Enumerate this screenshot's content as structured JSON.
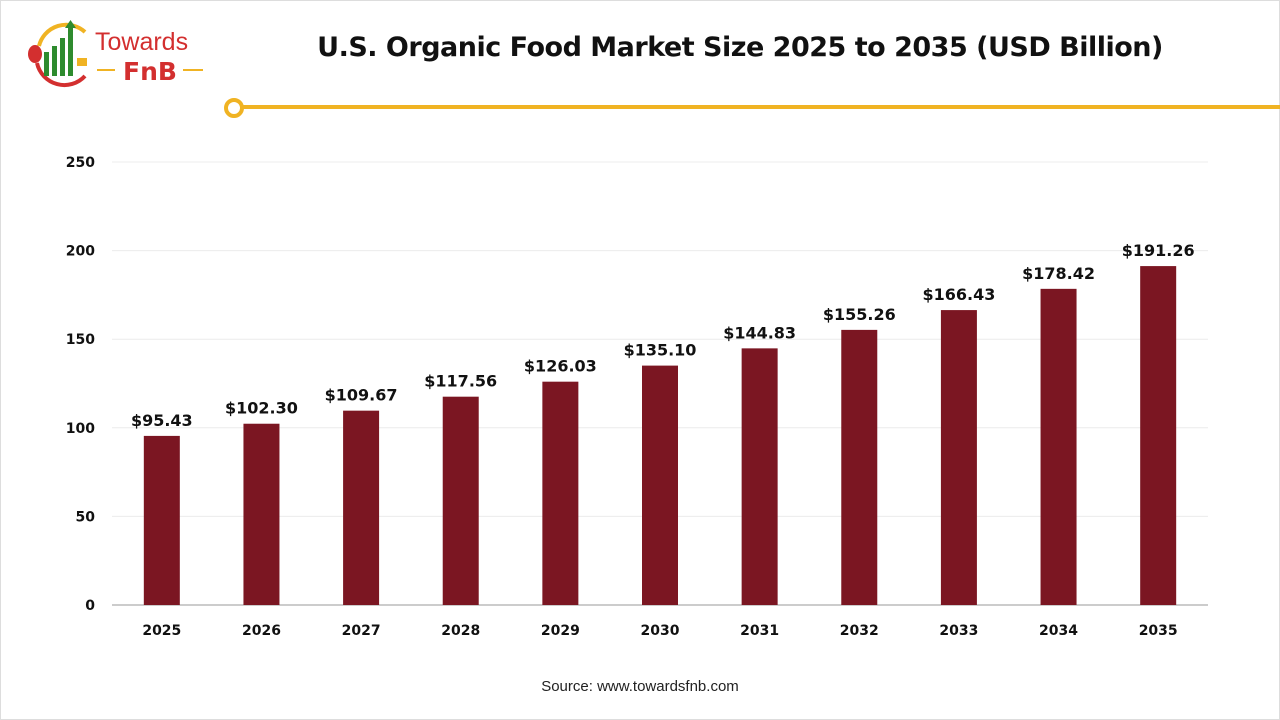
{
  "logo": {
    "text_top": "Towards",
    "text_bottom": "FnB"
  },
  "title": "U.S. Organic Food Market Size 2025 to 2035 (USD Billion)",
  "source": "Source: www.towardsfnb.com",
  "colors": {
    "bar": "#7b1622",
    "accent": "#f0b323",
    "logo_red": "#d32f2f",
    "logo_green": "#2e8b2e"
  },
  "chart_data": {
    "type": "bar",
    "title": "U.S. Organic Food Market Size 2025 to 2035 (USD Billion)",
    "xlabel": "",
    "ylabel": "",
    "categories": [
      "2025",
      "2026",
      "2027",
      "2028",
      "2029",
      "2030",
      "2031",
      "2032",
      "2033",
      "2034",
      "2035"
    ],
    "values": [
      95.43,
      102.3,
      109.67,
      117.56,
      126.03,
      135.1,
      144.83,
      155.26,
      166.43,
      178.42,
      191.26
    ],
    "data_labels": [
      "$95.43",
      "$102.30",
      "$109.67",
      "$117.56",
      "$126.03",
      "$135.10",
      "$144.83",
      "$155.26",
      "$166.43",
      "$178.42",
      "$191.26"
    ],
    "ylim": [
      0,
      250
    ],
    "yticks": [
      0,
      50,
      100,
      150,
      200,
      250
    ],
    "grid": true,
    "legend": "none"
  }
}
